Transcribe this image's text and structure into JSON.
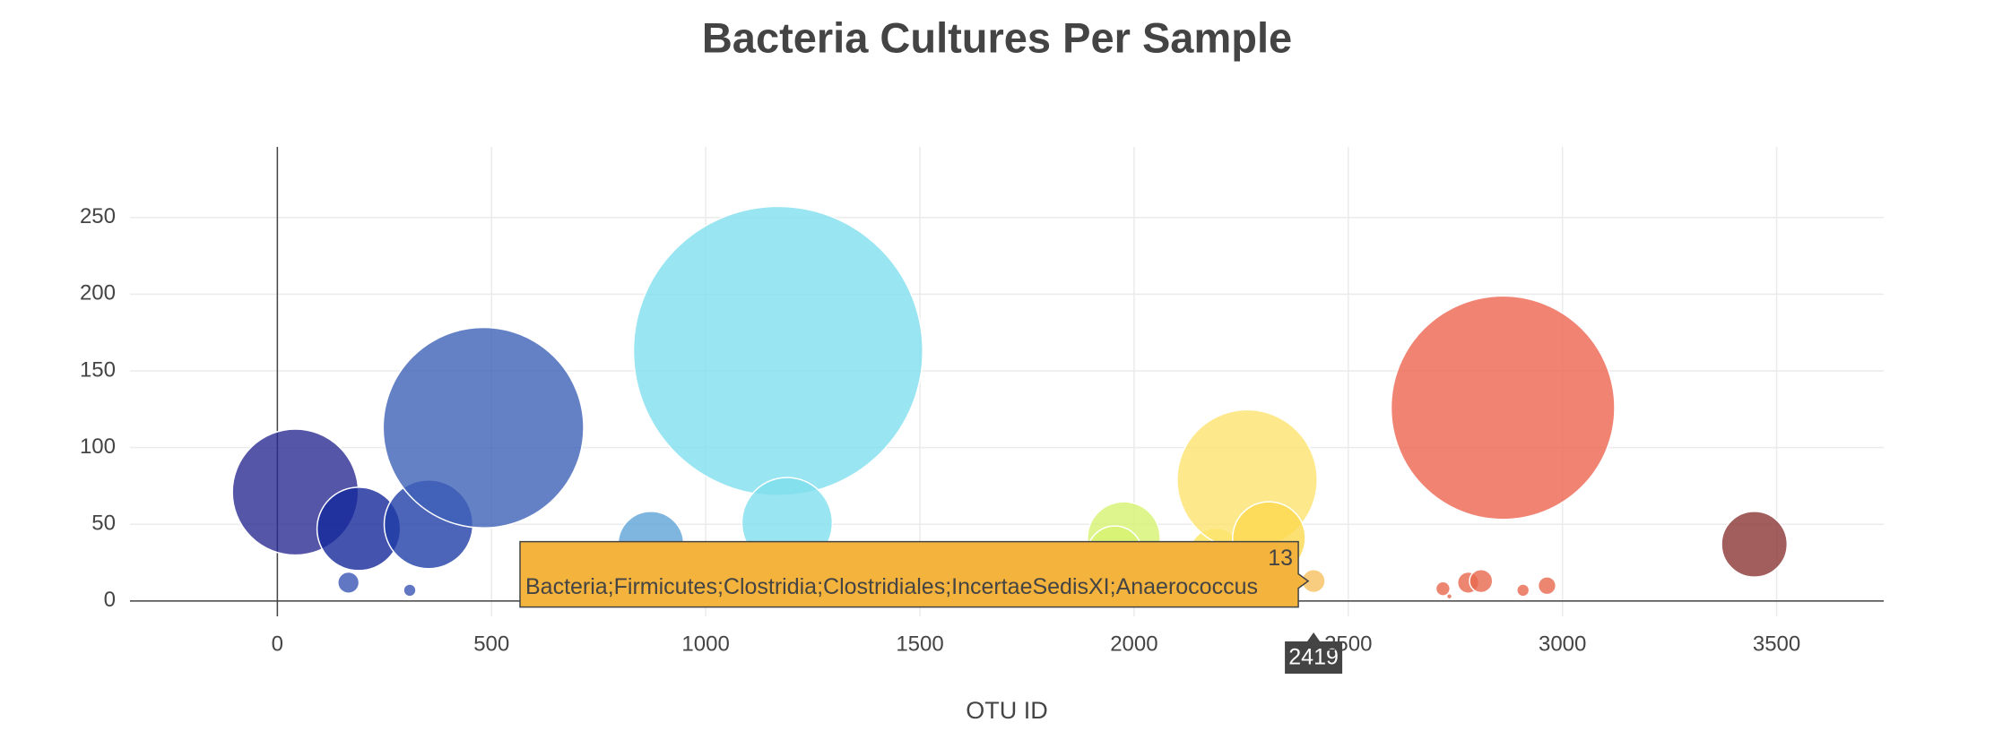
{
  "chart_data": {
    "type": "bubble",
    "title": "Bacteria Cultures Per Sample",
    "x_label": "OTU ID",
    "series": [
      {
        "x": [
          42,
          190,
          353,
          481,
          166,
          309,
          872,
          1169,
          1190,
          1976,
          1955,
          2190,
          2264,
          2315,
          2419,
          2861,
          3448,
          2721,
          2736,
          2780,
          2810,
          2908,
          2964
        ],
        "values": [
          71,
          47,
          50,
          113,
          12,
          7,
          37,
          163,
          51,
          41,
          31,
          30,
          79,
          41,
          13,
          126,
          37,
          8,
          3,
          12,
          13,
          7,
          10
        ],
        "colors": [
          "#2c2c94",
          "#14289a",
          "#1f3ea6",
          "#3f62b8",
          "#3a55b4",
          "#3a55b4",
          "#5fa4d8",
          "#7fdeee",
          "#7fdeee",
          "#d6f270",
          "#d6f270",
          "#fbe65e",
          "#fde46e",
          "#fbd84e",
          "#f7c060",
          "#ee6450",
          "#8a3634",
          "#e8684e",
          "#e8684e",
          "#e8684e",
          "#e8684e",
          "#e8684e",
          "#e8684e"
        ]
      }
    ],
    "hover": {
      "point": 14,
      "text": "Bacteria;Firmicutes;Clostridia;Clostridiales;IncertaeSedisXI;Anaerococcus"
    },
    "xlim": [
      -344,
      3750
    ],
    "ylim": [
      -10,
      296
    ],
    "xticks": [
      0,
      500,
      1000,
      1500,
      2000,
      2500,
      3000,
      3500
    ],
    "yticks": [
      0,
      50,
      100,
      150,
      200,
      250
    ],
    "grid": true
  }
}
